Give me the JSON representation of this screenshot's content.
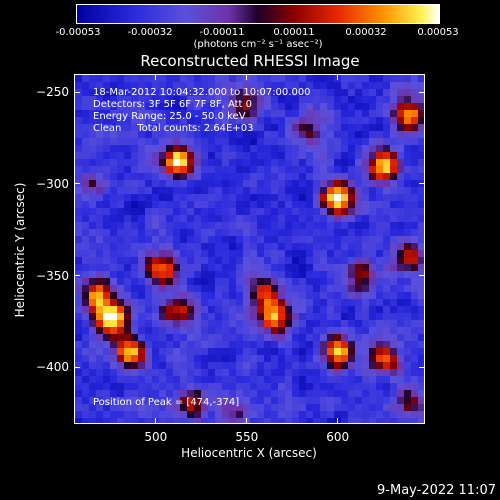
{
  "chart_data": {
    "type": "heatmap",
    "title": "Reconstructed RHESSI Image",
    "xlabel": "Heliocentric X (arcsec)",
    "ylabel": "Heliocentric Y (arcsec)",
    "xlim": [
      455,
      648
    ],
    "ylim": [
      -431,
      -240
    ],
    "x_ticks": [
      500,
      550,
      600
    ],
    "y_ticks": [
      -250,
      -300,
      -350,
      -400
    ],
    "colorbar": {
      "ticks": [
        "-0.00053",
        "-0.00032",
        "-0.00011",
        "0.00011",
        "0.00032",
        "0.00053"
      ],
      "range": [
        -0.00053,
        0.00053
      ],
      "units": "(photons cm⁻² s⁻¹ asec⁻²)"
    },
    "annotations": [
      "18-Mar-2012 10:04:32.000 to 10:07:00.000",
      "Detectors: 3F 5F 6F 7F 8F, Att 0",
      "Energy Range: 25.0 - 50.0 keV",
      "Clean     Total counts: 2.64E+03"
    ],
    "peak_label": "Position of Peak = [474,-374]",
    "peak": [
      474,
      -374
    ],
    "sources": [
      {
        "x": 475,
        "y": -374,
        "amp": 1.0
      },
      {
        "x": 468,
        "y": -360,
        "amp": 0.8
      },
      {
        "x": 485,
        "y": -392,
        "amp": 0.85
      },
      {
        "x": 512,
        "y": -287,
        "amp": 0.95
      },
      {
        "x": 503,
        "y": -347,
        "amp": 0.75
      },
      {
        "x": 512,
        "y": -370,
        "amp": 0.6
      },
      {
        "x": 565,
        "y": -373,
        "amp": 0.75
      },
      {
        "x": 560,
        "y": -360,
        "amp": 0.55
      },
      {
        "x": 600,
        "y": -308,
        "amp": 0.9
      },
      {
        "x": 625,
        "y": -290,
        "amp": 0.85
      },
      {
        "x": 640,
        "y": -262,
        "amp": 0.8
      },
      {
        "x": 612,
        "y": -350,
        "amp": 0.55
      },
      {
        "x": 640,
        "y": -340,
        "amp": 0.6
      },
      {
        "x": 600,
        "y": -392,
        "amp": 0.85
      },
      {
        "x": 625,
        "y": -395,
        "amp": 0.75
      },
      {
        "x": 520,
        "y": -420,
        "amp": 0.55
      },
      {
        "x": 548,
        "y": -255,
        "amp": 0.45
      },
      {
        "x": 585,
        "y": -270,
        "amp": 0.4
      },
      {
        "x": 465,
        "y": -300,
        "amp": 0.35
      },
      {
        "x": 545,
        "y": -425,
        "amp": 0.35
      },
      {
        "x": 640,
        "y": -420,
        "amp": 0.45
      }
    ]
  },
  "timestamp": "9-May-2022 11:07"
}
